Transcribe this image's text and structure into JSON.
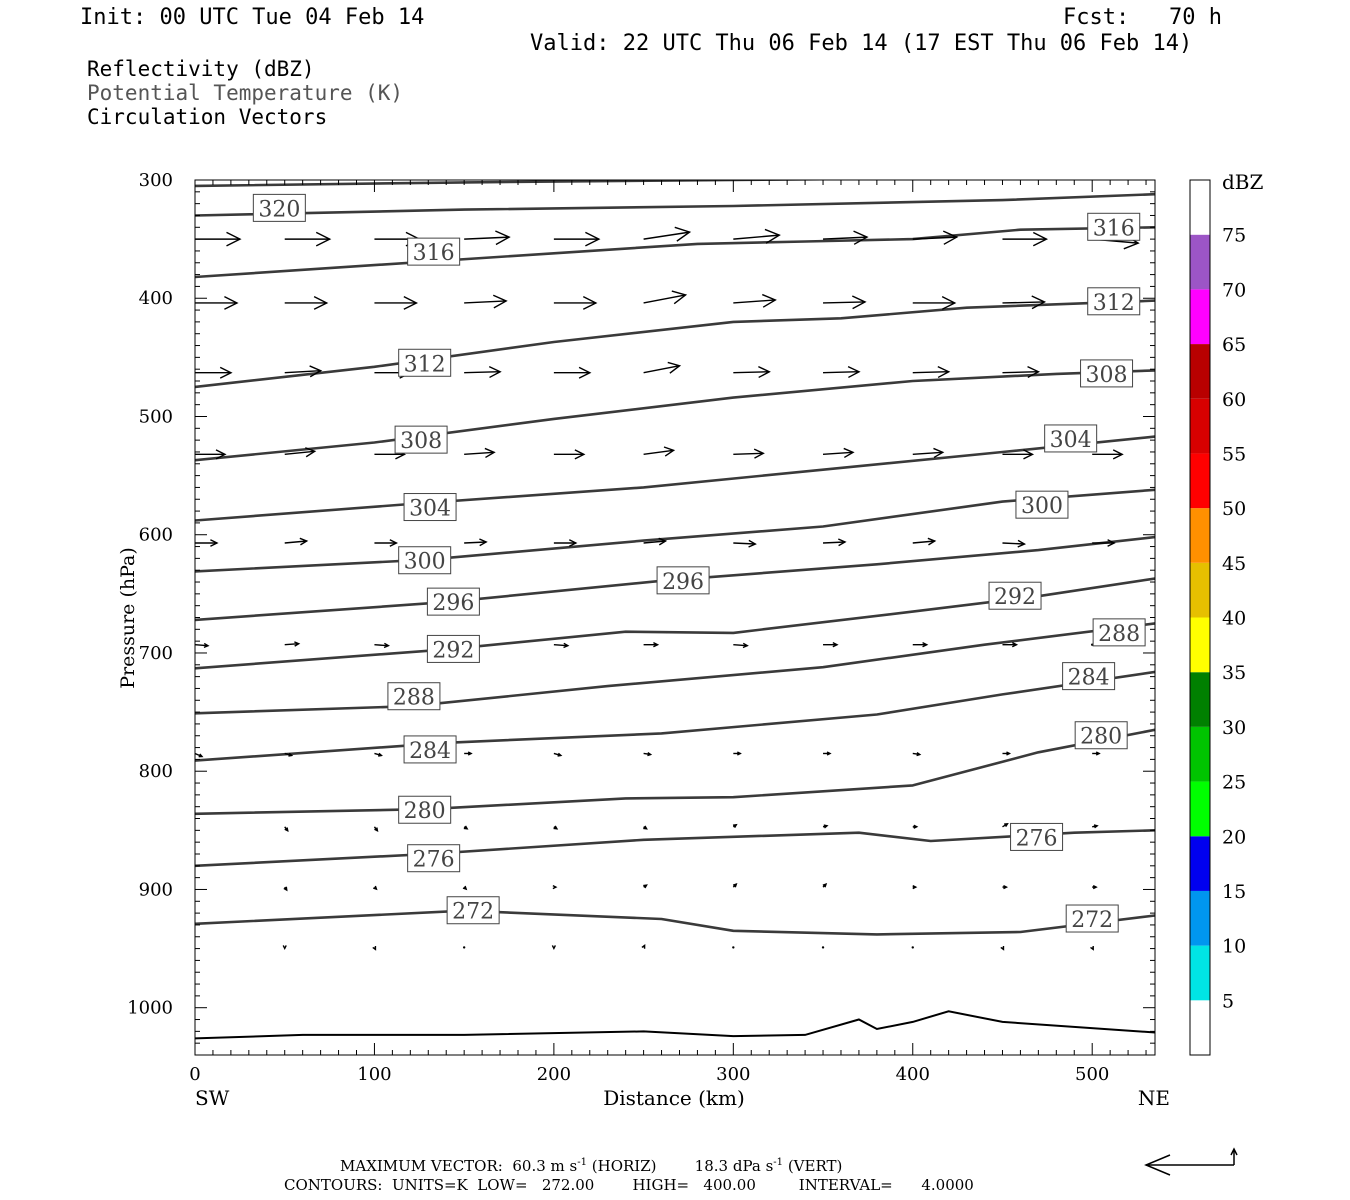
{
  "header": {
    "init": "Init: 00 UTC Tue 04 Feb 14",
    "fcst": "Fcst:   70 h",
    "valid": "Valid: 22 UTC Thu 06 Feb 14 (17 EST Thu 06 Feb 14)"
  },
  "fields": [
    "Reflectivity (dBZ)",
    "Potential Temperature (K)",
    "Circulation Vectors"
  ],
  "footer": {
    "max_vector_label": "MAXIMUM VECTOR:",
    "horiz": "60.3 m s",
    "horiz_unit": "(HORIZ)",
    "vert": "18.3 dPa s",
    "vert_unit": "(VERT)",
    "exp": "-1",
    "contours": "CONTOURS:  UNITS=K  LOW=   272.00        HIGH=   400.00         INTERVAL=      4.0000"
  },
  "colors": {
    "contour": "#3a3a3a",
    "axis": "#000000"
  },
  "chart_data": {
    "type": "line",
    "xlabel": "Distance (km)",
    "ylabel": "Pressure (hPa)",
    "x_left_label": "SW",
    "x_right_label": "NE",
    "xlim": [
      0,
      535
    ],
    "ylim": [
      300,
      1040
    ],
    "y_inverted": true,
    "x_ticks": [
      0,
      100,
      200,
      300,
      400,
      500
    ],
    "y_ticks": [
      300,
      400,
      500,
      600,
      700,
      800,
      900,
      1000
    ],
    "contour_units": "K",
    "contours": [
      {
        "theta": 320,
        "label": "320",
        "points": [
          [
            0,
            305
          ],
          [
            150,
            302
          ],
          [
            300,
            300
          ],
          [
            450,
            298
          ],
          [
            535,
            295
          ]
        ],
        "label_at": [
          47,
          324
        ]
      },
      {
        "theta": 316,
        "label": "316",
        "points": [
          [
            0,
            330
          ],
          [
            150,
            325
          ],
          [
            300,
            322
          ],
          [
            450,
            317
          ],
          [
            535,
            312
          ]
        ],
        "label_at": [
          133,
          361
        ]
      },
      {
        "theta": 316,
        "label": "316",
        "points": [
          [
            0,
            382
          ],
          [
            100,
            372
          ],
          [
            200,
            362
          ],
          [
            280,
            354
          ],
          [
            340,
            352
          ],
          [
            400,
            350
          ],
          [
            460,
            342
          ],
          [
            535,
            340
          ]
        ],
        "label_at": [
          512,
          340
        ]
      },
      {
        "theta": 312,
        "label": "312",
        "points": [
          [
            0,
            475
          ],
          [
            100,
            458
          ],
          [
            200,
            437
          ],
          [
            300,
            420
          ],
          [
            360,
            417
          ],
          [
            430,
            408
          ],
          [
            535,
            402
          ]
        ],
        "label_at": [
          128,
          455
        ]
      },
      {
        "theta": 312,
        "label": "312",
        "label_at": [
          512,
          403
        ]
      },
      {
        "theta": 308,
        "label": "308",
        "points": [
          [
            0,
            537
          ],
          [
            100,
            522
          ],
          [
            200,
            502
          ],
          [
            300,
            484
          ],
          [
            400,
            470
          ],
          [
            480,
            464
          ],
          [
            535,
            461
          ]
        ],
        "label_at": [
          126,
          520
        ]
      },
      {
        "theta": 308,
        "label": "308",
        "label_at": [
          508,
          464
        ]
      },
      {
        "theta": 304,
        "label": "304",
        "points": [
          [
            0,
            588
          ],
          [
            120,
            574
          ],
          [
            250,
            560
          ],
          [
            350,
            545
          ],
          [
            450,
            530
          ],
          [
            535,
            517
          ]
        ],
        "label_at": [
          131,
          577
        ]
      },
      {
        "theta": 304,
        "label": "304",
        "label_at": [
          488,
          519
        ]
      },
      {
        "theta": 300,
        "label": "300",
        "points": [
          [
            0,
            631
          ],
          [
            130,
            621
          ],
          [
            250,
            605
          ],
          [
            350,
            593
          ],
          [
            450,
            572
          ],
          [
            535,
            562
          ]
        ],
        "label_at": [
          128,
          622
        ]
      },
      {
        "theta": 300,
        "label": "300",
        "label_at": [
          472,
          575
        ]
      },
      {
        "theta": 296,
        "label": "296",
        "points": [
          [
            0,
            672
          ],
          [
            140,
            657
          ],
          [
            260,
            639
          ],
          [
            380,
            625
          ],
          [
            470,
            613
          ],
          [
            535,
            602
          ]
        ],
        "label_at": [
          144,
          657
        ]
      },
      {
        "theta": 296,
        "label": "296",
        "label_at": [
          272,
          639
        ]
      },
      {
        "theta": 292,
        "label": "292",
        "points": [
          [
            0,
            713
          ],
          [
            140,
            697
          ],
          [
            240,
            682
          ],
          [
            300,
            683
          ],
          [
            400,
            665
          ],
          [
            470,
            652
          ],
          [
            535,
            637
          ]
        ],
        "label_at": [
          144,
          697
        ]
      },
      {
        "theta": 292,
        "label": "292",
        "label_at": [
          457,
          652
        ]
      },
      {
        "theta": 288,
        "label": "288",
        "points": [
          [
            0,
            751
          ],
          [
            120,
            745
          ],
          [
            230,
            728
          ],
          [
            350,
            712
          ],
          [
            440,
            693
          ],
          [
            535,
            675
          ]
        ],
        "label_at": [
          122,
          737
        ]
      },
      {
        "theta": 288,
        "label": "288",
        "label_at": [
          515,
          683
        ]
      },
      {
        "theta": 284,
        "label": "284",
        "points": [
          [
            0,
            791
          ],
          [
            140,
            776
          ],
          [
            260,
            768
          ],
          [
            380,
            752
          ],
          [
            450,
            735
          ],
          [
            535,
            716
          ]
        ],
        "label_at": [
          131,
          782
        ]
      },
      {
        "theta": 284,
        "label": "284",
        "label_at": [
          498,
          720
        ]
      },
      {
        "theta": 280,
        "label": "280",
        "points": [
          [
            0,
            836
          ],
          [
            130,
            832
          ],
          [
            240,
            823
          ],
          [
            300,
            822
          ],
          [
            400,
            812
          ],
          [
            470,
            784
          ],
          [
            535,
            765
          ]
        ],
        "label_at": [
          128,
          833
        ]
      },
      {
        "theta": 280,
        "label": "280",
        "label_at": [
          505,
          770
        ]
      },
      {
        "theta": 276,
        "label": "276",
        "points": [
          [
            0,
            880
          ],
          [
            130,
            870
          ],
          [
            250,
            858
          ],
          [
            370,
            852
          ],
          [
            410,
            859
          ],
          [
            490,
            852
          ],
          [
            535,
            850
          ]
        ],
        "label_at": [
          133,
          874
        ]
      },
      {
        "theta": 276,
        "label": "276",
        "label_at": [
          469,
          856
        ]
      },
      {
        "theta": 272,
        "label": "272",
        "points": [
          [
            0,
            929
          ],
          [
            150,
            918
          ],
          [
            260,
            925
          ],
          [
            300,
            935
          ],
          [
            380,
            938
          ],
          [
            460,
            936
          ],
          [
            535,
            922
          ]
        ],
        "label_at": [
          155,
          918
        ]
      },
      {
        "theta": 272,
        "label": "272",
        "label_at": [
          500,
          925
        ]
      }
    ],
    "surface": {
      "points": [
        [
          0,
          1026
        ],
        [
          60,
          1023
        ],
        [
          150,
          1023
        ],
        [
          250,
          1020
        ],
        [
          300,
          1024
        ],
        [
          340,
          1023
        ],
        [
          370,
          1010
        ],
        [
          380,
          1018
        ],
        [
          400,
          1012
        ],
        [
          420,
          1003
        ],
        [
          450,
          1012
        ],
        [
          535,
          1021
        ]
      ]
    },
    "vectors": [
      {
        "y": 350,
        "x": [
          0,
          50,
          100,
          150,
          200,
          250,
          300,
          350,
          400,
          450,
          500
        ],
        "dx": [
          45,
          45,
          45,
          45,
          45,
          46,
          46,
          44,
          44,
          44,
          46
        ],
        "dy": [
          0,
          0,
          0,
          -2,
          0,
          -7,
          -4,
          -2,
          -2,
          0,
          4
        ]
      },
      {
        "y": 404,
        "x": [
          0,
          50,
          100,
          150,
          200,
          250,
          300,
          350,
          400,
          450,
          500
        ],
        "dx": [
          42,
          42,
          42,
          42,
          42,
          42,
          42,
          42,
          42,
          42,
          42
        ],
        "dy": [
          0,
          0,
          0,
          -2,
          0,
          -8,
          -3,
          -1,
          0,
          -1,
          4
        ]
      },
      {
        "y": 463,
        "x": [
          0,
          50,
          100,
          150,
          200,
          250,
          300,
          350,
          400,
          450,
          500
        ],
        "dx": [
          36,
          36,
          36,
          36,
          36,
          36,
          36,
          36,
          36,
          36,
          36
        ],
        "dy": [
          0,
          -2,
          0,
          -1,
          0,
          -7,
          -1,
          -1,
          -1,
          -1,
          4
        ]
      },
      {
        "y": 532,
        "x": [
          0,
          50,
          100,
          150,
          200,
          250,
          300,
          350,
          400,
          450,
          500
        ],
        "dx": [
          30,
          30,
          30,
          30,
          30,
          30,
          30,
          30,
          30,
          30,
          30
        ],
        "dy": [
          0,
          -3,
          0,
          -2,
          0,
          -4,
          -1,
          -2,
          -2,
          0,
          0
        ]
      },
      {
        "y": 607,
        "x": [
          0,
          50,
          100,
          150,
          200,
          250,
          300,
          350,
          400,
          450,
          500
        ],
        "dx": [
          22,
          22,
          22,
          22,
          22,
          22,
          22,
          22,
          22,
          22,
          22
        ],
        "dy": [
          0,
          -2,
          0,
          -1,
          0,
          -2,
          1,
          -1,
          -2,
          1,
          0
        ]
      },
      {
        "y": 693,
        "x": [
          0,
          50,
          100,
          150,
          200,
          250,
          300,
          350,
          400,
          450,
          500
        ],
        "dx": [
          13,
          14,
          14,
          14,
          14,
          14,
          14,
          14,
          14,
          14,
          0
        ],
        "dy": [
          1,
          -1,
          1,
          0,
          1,
          0,
          1,
          0,
          0,
          0,
          0
        ]
      },
      {
        "y": 785,
        "x": [
          0,
          50,
          100,
          150,
          200,
          250,
          300,
          350,
          400,
          450,
          500
        ],
        "dx": [
          7,
          7,
          7,
          7,
          7,
          7,
          7,
          7,
          7,
          7,
          7
        ],
        "dy": [
          3,
          2,
          2,
          0,
          2,
          1,
          0,
          0,
          1,
          0,
          0
        ]
      },
      {
        "y": 847,
        "x": [
          50,
          100,
          150,
          200,
          250,
          300,
          350,
          400,
          450,
          500
        ],
        "dx": [
          3,
          3,
          3,
          3,
          3,
          3,
          4,
          4,
          5,
          5
        ],
        "dy": [
          4,
          4,
          2,
          2,
          2,
          -2,
          -1,
          0,
          -3,
          -1
        ]
      },
      {
        "y": 898,
        "x": [
          50,
          100,
          150,
          200,
          250,
          300,
          350,
          400,
          450,
          500
        ],
        "dx": [
          2,
          2,
          2,
          2,
          3,
          3,
          3,
          3,
          4,
          4
        ],
        "dy": [
          3,
          2,
          2,
          0,
          -2,
          -3,
          -3,
          0,
          0,
          0
        ]
      },
      {
        "y": 949,
        "x": [
          50,
          100,
          150,
          200,
          250,
          300,
          350,
          400,
          450,
          500
        ],
        "dx": [
          0,
          1,
          0,
          0,
          1,
          0,
          0,
          0,
          1,
          1
        ],
        "dy": [
          1,
          2,
          0,
          1,
          -2,
          0,
          0,
          0,
          2,
          2
        ]
      }
    ],
    "colorbar": {
      "label": "dBZ",
      "ticks": [
        "5",
        "10",
        "15",
        "20",
        "25",
        "30",
        "35",
        "40",
        "45",
        "50",
        "55",
        "60",
        "65",
        "70",
        "75"
      ],
      "colors": [
        "#00e4e4",
        "#0096ef",
        "#0000ef",
        "#00ff00",
        "#00c400",
        "#008000",
        "#ffff00",
        "#e6c000",
        "#ff9000",
        "#ff0000",
        "#d80000",
        "#b80000",
        "#ff00ff",
        "#9c55c6",
        "#ffffff"
      ]
    }
  }
}
